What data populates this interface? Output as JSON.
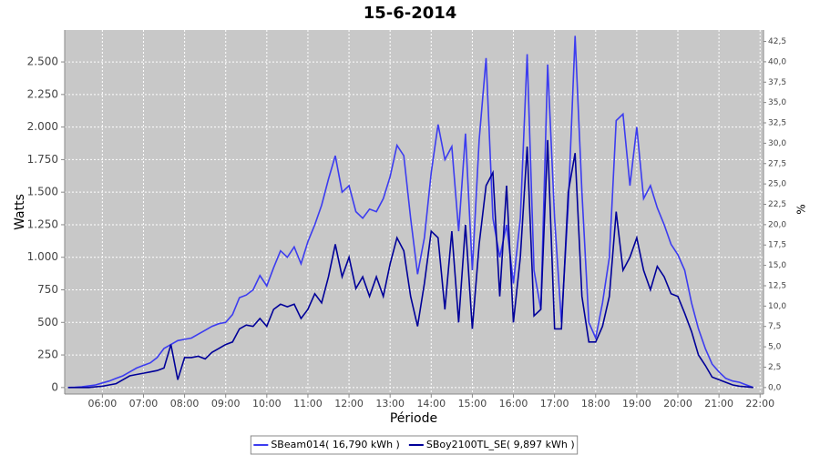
{
  "chart_data": {
    "type": "line",
    "title": "15-6-2014",
    "x_label": "Période",
    "y_label": "Watts",
    "y2_label": "%",
    "x": [
      "05:10",
      "05:20",
      "05:30",
      "05:40",
      "05:50",
      "06:00",
      "06:10",
      "06:20",
      "06:30",
      "06:40",
      "06:50",
      "07:00",
      "07:10",
      "07:20",
      "07:30",
      "07:40",
      "07:50",
      "08:00",
      "08:10",
      "08:20",
      "08:30",
      "08:40",
      "08:50",
      "09:00",
      "09:10",
      "09:20",
      "09:30",
      "09:40",
      "09:50",
      "10:00",
      "10:10",
      "10:20",
      "10:30",
      "10:40",
      "10:50",
      "11:00",
      "11:10",
      "11:20",
      "11:30",
      "11:40",
      "11:50",
      "12:00",
      "12:10",
      "12:20",
      "12:30",
      "12:40",
      "12:50",
      "13:00",
      "13:10",
      "13:20",
      "13:30",
      "13:40",
      "13:50",
      "14:00",
      "14:10",
      "14:20",
      "14:30",
      "14:40",
      "14:50",
      "15:00",
      "15:10",
      "15:20",
      "15:30",
      "15:40",
      "15:50",
      "16:00",
      "16:10",
      "16:20",
      "16:30",
      "16:40",
      "16:50",
      "17:00",
      "17:10",
      "17:20",
      "17:30",
      "17:40",
      "17:50",
      "18:00",
      "18:10",
      "18:20",
      "18:30",
      "18:40",
      "18:50",
      "19:00",
      "19:10",
      "19:20",
      "19:30",
      "19:40",
      "19:50",
      "20:00",
      "20:10",
      "20:20",
      "20:30",
      "20:40",
      "20:50",
      "21:00",
      "21:10",
      "21:20",
      "21:30",
      "21:40",
      "21:50"
    ],
    "series": [
      {
        "name": "SBeam014( 16,790 kWh )",
        "color": "#3c3cf0",
        "values": [
          0,
          2,
          5,
          12,
          20,
          35,
          50,
          70,
          90,
          120,
          150,
          170,
          190,
          230,
          300,
          330,
          360,
          370,
          380,
          410,
          440,
          470,
          490,
          500,
          560,
          690,
          710,
          750,
          860,
          780,
          920,
          1050,
          1000,
          1080,
          950,
          1120,
          1250,
          1400,
          1600,
          1780,
          1500,
          1550,
          1350,
          1300,
          1370,
          1350,
          1450,
          1620,
          1860,
          1780,
          1300,
          870,
          1150,
          1650,
          2020,
          1750,
          1850,
          1200,
          1950,
          900,
          1900,
          2530,
          1300,
          1000,
          1250,
          800,
          1300,
          2560,
          900,
          600,
          2480,
          1300,
          500,
          1400,
          2700,
          1500,
          500,
          380,
          650,
          1000,
          2050,
          2100,
          1550,
          2000,
          1450,
          1550,
          1380,
          1250,
          1100,
          1020,
          900,
          650,
          450,
          300,
          180,
          120,
          70,
          50,
          40,
          20,
          0
        ]
      },
      {
        "name": "SBoy2100TL_SE( 9,897 kWh )",
        "color": "#000099",
        "values": [
          0,
          0,
          0,
          0,
          5,
          10,
          20,
          30,
          60,
          90,
          100,
          110,
          120,
          130,
          150,
          330,
          60,
          230,
          230,
          240,
          220,
          270,
          300,
          330,
          350,
          450,
          480,
          470,
          530,
          470,
          600,
          640,
          620,
          640,
          530,
          600,
          720,
          650,
          850,
          1100,
          850,
          1000,
          760,
          850,
          700,
          850,
          700,
          950,
          1150,
          1050,
          700,
          470,
          800,
          1200,
          1150,
          600,
          1200,
          500,
          1250,
          450,
          1100,
          1550,
          1650,
          700,
          1550,
          500,
          1000,
          1850,
          550,
          600,
          1900,
          450,
          450,
          1500,
          1800,
          700,
          350,
          350,
          470,
          700,
          1350,
          900,
          1000,
          1150,
          900,
          750,
          930,
          850,
          720,
          700,
          570,
          430,
          250,
          170,
          80,
          60,
          40,
          20,
          10,
          5,
          0
        ]
      }
    ],
    "xlim": [
      "05:05",
      "22:05"
    ],
    "xticks": [
      "06:00",
      "07:00",
      "08:00",
      "09:00",
      "10:00",
      "11:00",
      "12:00",
      "13:00",
      "14:00",
      "15:00",
      "16:00",
      "17:00",
      "18:00",
      "19:00",
      "20:00",
      "21:00",
      "22:00"
    ],
    "ylim": [
      -50,
      2745
    ],
    "yticks": [
      0,
      250,
      500,
      750,
      {
        "value": 1000,
        "label": "1.000"
      },
      {
        "value": 1250,
        "label": "1.250"
      },
      {
        "value": 1500,
        "label": "1.500"
      },
      {
        "value": 1750,
        "label": "1.750"
      },
      {
        "value": 2000,
        "label": "2.000"
      },
      {
        "value": 2250,
        "label": "2.250"
      },
      {
        "value": 2500,
        "label": "2.500"
      }
    ],
    "y2lim": [
      -0.8,
      43.9
    ],
    "y2ticks": [
      {
        "value": 0,
        "label": "0,0"
      },
      {
        "value": 2.5,
        "label": "2,5"
      },
      {
        "value": 5,
        "label": "5,0"
      },
      {
        "value": 7.5,
        "label": "7,5"
      },
      {
        "value": 10,
        "label": "10,0"
      },
      {
        "value": 12.5,
        "label": "12,5"
      },
      {
        "value": 15,
        "label": "15,0"
      },
      {
        "value": 17.5,
        "label": "17,5"
      },
      {
        "value": 20,
        "label": "20,0"
      },
      {
        "value": 22.5,
        "label": "22,5"
      },
      {
        "value": 25,
        "label": "25,0"
      },
      {
        "value": 27.5,
        "label": "27,5"
      },
      {
        "value": 30,
        "label": "30,0"
      },
      {
        "value": 32.5,
        "label": "32,5"
      },
      {
        "value": 35,
        "label": "35,0"
      },
      {
        "value": 37.5,
        "label": "37,5"
      },
      {
        "value": 40,
        "label": "40,0"
      },
      {
        "value": 42.5,
        "label": "42,5"
      }
    ],
    "grid": true,
    "legend": "bottom"
  }
}
